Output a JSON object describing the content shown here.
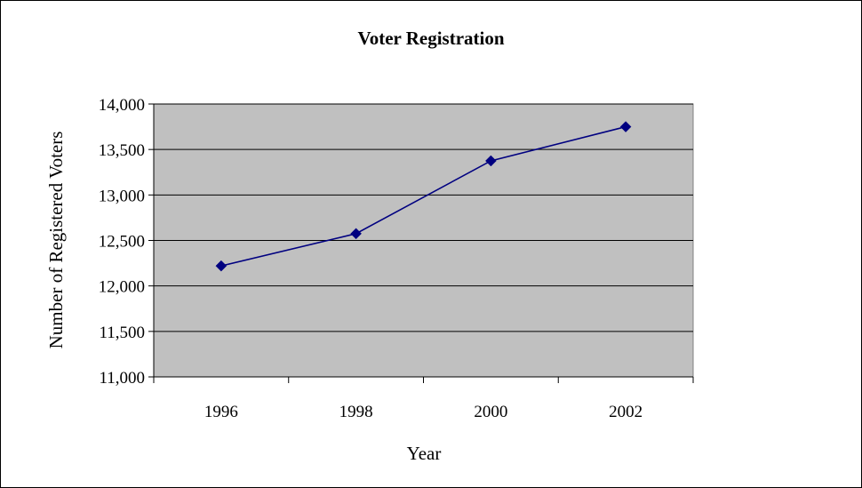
{
  "chart_data": {
    "type": "line",
    "title": "Voter Registration",
    "xlabel": "Year",
    "ylabel": "Number of Registered Voters",
    "categories": [
      "1996",
      "1998",
      "2000",
      "2002"
    ],
    "series": [
      {
        "values": [
          12220,
          12575,
          13375,
          13750
        ]
      }
    ],
    "ylim": [
      11000,
      14000
    ],
    "yticks": [
      11000,
      11500,
      12000,
      12500,
      13000,
      13500,
      14000
    ],
    "ytick_labels": [
      "11,000",
      "11,500",
      "12,000",
      "12,500",
      "13,000",
      "13,500",
      "14,000"
    ],
    "grid": "horizontal",
    "legend": "none",
    "colors": {
      "plot_background": "#c0c0c0",
      "line": "#000080",
      "marker": "#000080",
      "gridline": "#000000"
    }
  }
}
